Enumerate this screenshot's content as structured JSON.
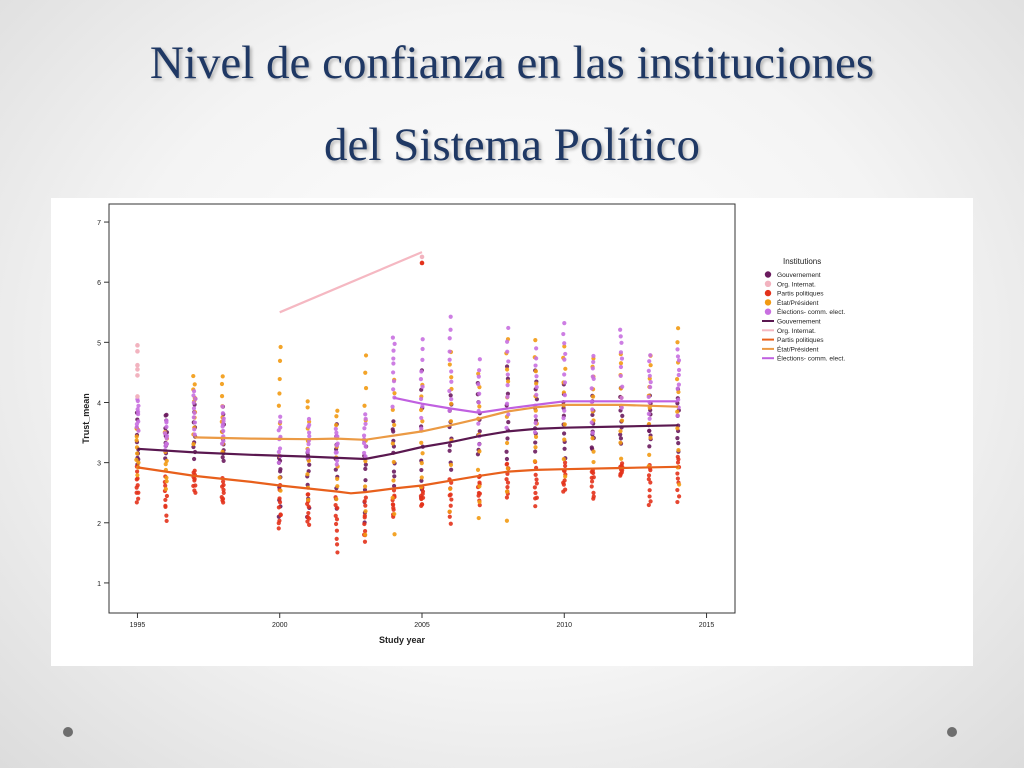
{
  "slide": {
    "title_line1": "Nivel de confianza en las instituciones",
    "title_line2": "del Sistema Político"
  },
  "chart_data": {
    "type": "scatter",
    "xlabel": "Study year",
    "ylabel": "Trust_mean",
    "xlim": [
      1994,
      2016
    ],
    "ylim": [
      0.5,
      7.3
    ],
    "xticks": [
      1995,
      2000,
      2005,
      2010,
      2015
    ],
    "yticks": [
      1,
      2,
      3,
      4,
      5,
      6,
      7
    ],
    "grid": false,
    "legend": {
      "title": "Institutions",
      "position": "right",
      "entries": [
        {
          "label": "Gouvernement",
          "kind": "point",
          "color": "#6a1b5e"
        },
        {
          "label": "Org. Internat.",
          "kind": "point",
          "color": "#f2b3bf"
        },
        {
          "label": "Partis politiques",
          "kind": "point",
          "color": "#e3321b"
        },
        {
          "label": "État/Président",
          "kind": "point",
          "color": "#f29a12"
        },
        {
          "label": "Élections- comm. elect.",
          "kind": "point",
          "color": "#c870e0"
        },
        {
          "label": "Gouvernement",
          "kind": "line",
          "color": "#5a1850"
        },
        {
          "label": "Org. Internat.",
          "kind": "line",
          "color": "#f5b8c2"
        },
        {
          "label": "Partis politiques",
          "kind": "line",
          "color": "#e8601c"
        },
        {
          "label": "État/Président",
          "kind": "line",
          "color": "#eb9a44"
        },
        {
          "label": "Élections- comm. elect.",
          "kind": "line",
          "color": "#c060e0"
        }
      ]
    },
    "fit_lines": [
      {
        "series": "Gouvernement",
        "color": "#5a1850",
        "points": [
          [
            1995,
            3.23
          ],
          [
            1997,
            3.17
          ],
          [
            1999,
            3.13
          ],
          [
            2001,
            3.1
          ],
          [
            2003,
            3.06
          ],
          [
            2004,
            3.15
          ],
          [
            2005,
            3.26
          ],
          [
            2006,
            3.34
          ],
          [
            2007,
            3.44
          ],
          [
            2008,
            3.52
          ],
          [
            2009,
            3.56
          ],
          [
            2010,
            3.58
          ],
          [
            2012,
            3.6
          ],
          [
            2014,
            3.62
          ]
        ]
      },
      {
        "series": "Org. Internat.",
        "color": "#f5b8c2",
        "points": [
          [
            2000,
            5.5
          ],
          [
            2005,
            6.5
          ]
        ]
      },
      {
        "series": "Partis politiques",
        "color": "#e8601c",
        "points": [
          [
            1995,
            2.92
          ],
          [
            1997,
            2.78
          ],
          [
            1999,
            2.68
          ],
          [
            2000,
            2.62
          ],
          [
            2001,
            2.57
          ],
          [
            2002,
            2.52
          ],
          [
            2002.5,
            2.49
          ],
          [
            2003,
            2.51
          ],
          [
            2004,
            2.57
          ],
          [
            2005,
            2.62
          ],
          [
            2006,
            2.7
          ],
          [
            2007,
            2.78
          ],
          [
            2008,
            2.85
          ],
          [
            2009,
            2.88
          ],
          [
            2010,
            2.89
          ],
          [
            2012,
            2.91
          ],
          [
            2014,
            2.93
          ]
        ]
      },
      {
        "series": "État/Président",
        "color": "#eb9a44",
        "points": [
          [
            1997,
            3.42
          ],
          [
            1999,
            3.4
          ],
          [
            2001,
            3.39
          ],
          [
            2002,
            3.4
          ],
          [
            2003,
            3.38
          ],
          [
            2004,
            3.45
          ],
          [
            2005,
            3.52
          ],
          [
            2006,
            3.62
          ],
          [
            2007,
            3.73
          ],
          [
            2008,
            3.85
          ],
          [
            2009,
            3.92
          ],
          [
            2010,
            3.96
          ],
          [
            2012,
            3.96
          ],
          [
            2014,
            3.93
          ]
        ]
      },
      {
        "series": "Élections- comm. elect.",
        "color": "#c060e0",
        "points": [
          [
            2004,
            4.08
          ],
          [
            2005,
            3.98
          ],
          [
            2006,
            3.9
          ],
          [
            2007,
            3.83
          ],
          [
            2008,
            3.9
          ],
          [
            2009,
            3.96
          ],
          [
            2010,
            4.02
          ],
          [
            2012,
            4.02
          ],
          [
            2014,
            4.02
          ]
        ]
      }
    ],
    "scatter_years": [
      1995,
      1996,
      1997,
      1998,
      2000,
      2001,
      2002,
      2003,
      2004,
      2005,
      2006,
      2007,
      2008,
      2009,
      2010,
      2011,
      2012,
      2013,
      2014
    ],
    "scatter_series": [
      {
        "name": "Gouvernement",
        "color": "#6a1b5e",
        "values": [
          [
            3.87,
            3.28,
            2.95
          ],
          [
            3.82,
            3.48,
            3.1
          ],
          [
            4.1,
            3.5,
            3.1
          ],
          [
            3.95,
            3.3,
            3.0
          ],
          [
            3.1,
            2.8,
            2.1
          ],
          [
            3.2,
            2.85,
            2.1
          ],
          [
            3.6,
            3.0,
            2.2
          ],
          [
            3.4,
            2.8,
            2.0
          ],
          [
            3.7,
            3.2,
            2.6
          ],
          [
            4.5,
            3.1,
            2.4
          ],
          [
            4.1,
            3.5,
            2.9
          ],
          [
            4.3,
            3.6,
            3.1
          ],
          [
            4.6,
            3.6,
            2.9
          ],
          [
            4.55,
            3.8,
            3.2
          ],
          [
            4.3,
            3.7,
            3.1
          ],
          [
            4.1,
            3.6,
            3.2
          ],
          [
            4.2,
            3.7,
            3.3
          ],
          [
            4.1,
            3.6,
            3.3
          ],
          [
            4.2,
            3.7,
            3.2
          ]
        ]
      },
      {
        "name": "Partis politiques",
        "color": "#e3321b",
        "values": [
          [
            2.9,
            2.6,
            2.35
          ],
          [
            2.75,
            2.45,
            2.05
          ],
          [
            2.9,
            2.7,
            2.5
          ],
          [
            2.75,
            2.5,
            2.3
          ],
          [
            2.6,
            2.2,
            1.9
          ],
          [
            2.5,
            2.2,
            2.0
          ],
          [
            2.4,
            2.0,
            1.5
          ],
          [
            2.45,
            2.0,
            1.7
          ],
          [
            2.5,
            2.3,
            2.1
          ],
          [
            2.6,
            2.4,
            2.3
          ],
          [
            2.7,
            2.4,
            2.0
          ],
          [
            2.8,
            2.55,
            2.3
          ],
          [
            3.0,
            2.7,
            2.45
          ],
          [
            3.0,
            2.6,
            2.3
          ],
          [
            3.0,
            2.75,
            2.5
          ],
          [
            2.9,
            2.7,
            2.4
          ],
          [
            3.0,
            2.85,
            2.8
          ],
          [
            2.95,
            2.7,
            2.3
          ],
          [
            3.1,
            2.8,
            2.35
          ]
        ]
      },
      {
        "name": "État/Président",
        "color": "#f29a12",
        "values": [
          [
            3.6,
            3.2,
            2.8
          ],
          [
            3.5,
            3.0,
            2.6
          ],
          [
            4.45,
            3.95,
            3.3
          ],
          [
            4.45,
            3.7,
            3.2
          ],
          [
            4.92,
            3.8,
            2.5
          ],
          [
            4.05,
            3.3,
            2.4
          ],
          [
            3.9,
            3.2,
            2.4
          ],
          [
            4.75,
            3.6,
            1.8
          ],
          [
            4.4,
            3.2,
            1.8
          ],
          [
            4.3,
            3.4,
            2.6
          ],
          [
            4.8,
            3.9,
            2.2
          ],
          [
            4.5,
            3.3,
            2.05
          ],
          [
            5.05,
            4.0,
            2.05
          ],
          [
            5.0,
            4.0,
            3.0
          ],
          [
            4.9,
            4.1,
            2.8
          ],
          [
            4.75,
            4.0,
            3.0
          ],
          [
            4.8,
            4.0,
            3.1
          ],
          [
            4.75,
            4.0,
            2.9
          ],
          [
            5.25,
            4.0,
            2.6
          ]
        ]
      },
      {
        "name": "Élections- comm. elect.",
        "color": "#c870e0",
        "values": [
          [
            4.05,
            3.8,
            3.5
          ],
          [
            3.7,
            3.4,
            3.2
          ],
          [
            4.2,
            3.9,
            3.5
          ],
          [
            3.9,
            3.6,
            3.3
          ],
          [
            3.8,
            3.4,
            3.0
          ],
          [
            3.7,
            3.4,
            3.1
          ],
          [
            3.6,
            3.3,
            3.0
          ],
          [
            3.8,
            3.4,
            3.1
          ],
          [
            5.1,
            4.6,
            3.9
          ],
          [
            5.05,
            4.3,
            3.6
          ],
          [
            5.4,
            4.6,
            3.9
          ],
          [
            4.7,
            4.1,
            3.3
          ],
          [
            5.2,
            4.4,
            3.6
          ],
          [
            4.9,
            4.2,
            3.5
          ],
          [
            5.3,
            4.6,
            3.7
          ],
          [
            4.8,
            4.3,
            3.5
          ],
          [
            5.2,
            4.7,
            3.9
          ],
          [
            4.75,
            4.3,
            3.7
          ],
          [
            4.9,
            4.4,
            3.8
          ]
        ]
      }
    ],
    "extra_points": [
      {
        "series": "Org. Internat.",
        "color": "#f2b3bf",
        "points": [
          [
            1995,
            4.95
          ],
          [
            1995,
            4.85
          ],
          [
            1995,
            4.62
          ],
          [
            1995,
            4.55
          ],
          [
            1995,
            4.45
          ],
          [
            1995,
            4.1
          ]
        ]
      },
      {
        "series": "Org. Internat.",
        "color": "#f2b3bf",
        "points": [
          [
            2005,
            6.42
          ]
        ]
      },
      {
        "series": "Partis politiques",
        "color": "#e3321b",
        "points": [
          [
            2005,
            6.32
          ]
        ]
      }
    ]
  },
  "style": {
    "title_color": "#1f3864",
    "axis_color": "#333333",
    "tick_label_color": "#222222"
  }
}
